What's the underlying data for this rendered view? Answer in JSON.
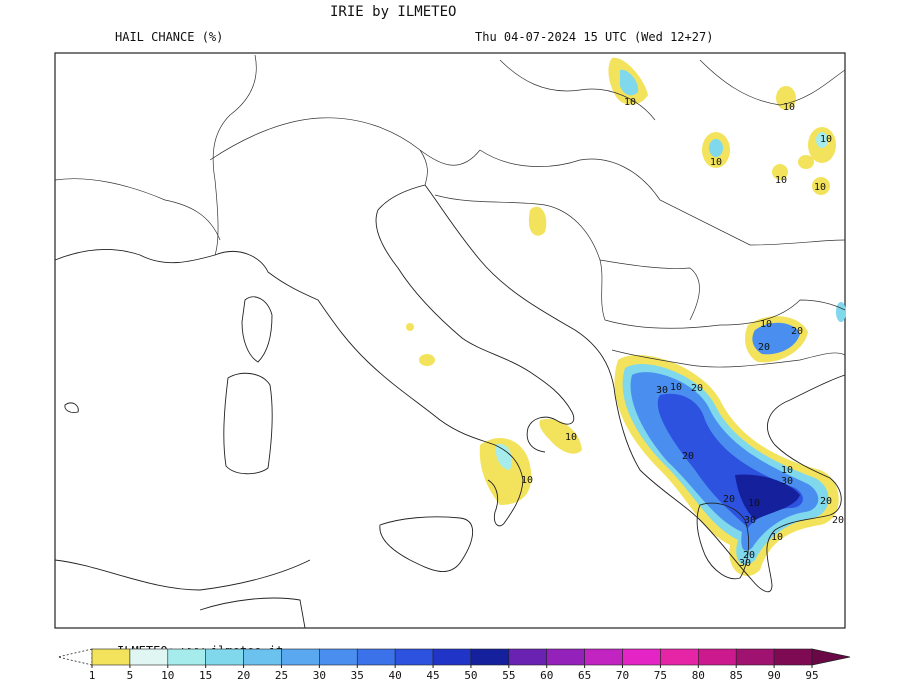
{
  "header": {
    "title": "IRIE by ILMETEO",
    "product": "HAIL CHANCE (%)",
    "valid_time": "Thu 04-07-2024 15 UTC (Wed 12+27)"
  },
  "watermark": "ILMETEO: www.ilmeteo.it",
  "contour_labels": [
    10,
    10,
    10,
    10,
    10,
    10,
    10,
    10,
    10,
    20,
    20,
    30,
    10,
    20,
    20,
    10,
    30,
    20,
    10,
    30,
    20,
    20,
    10,
    30,
    20
  ],
  "colorbar": {
    "ticks": [
      1,
      5,
      10,
      15,
      20,
      25,
      30,
      35,
      40,
      45,
      50,
      55,
      60,
      65,
      70,
      75,
      80,
      85,
      90,
      95
    ],
    "colors": [
      "#f3e35c",
      "#dff6f2",
      "#a6ecec",
      "#7fd8ec",
      "#6cc2ee",
      "#5aa8ef",
      "#4a8fef",
      "#3b72ea",
      "#2e52e0",
      "#2034c8",
      "#14209c",
      "#6a22b2",
      "#9422ba",
      "#c224c2",
      "#e424c4",
      "#e624a6",
      "#cc1a8e",
      "#a01270",
      "#7e0a54"
    ],
    "under_color": "#ffffff",
    "over_color": "#6a0846"
  }
}
